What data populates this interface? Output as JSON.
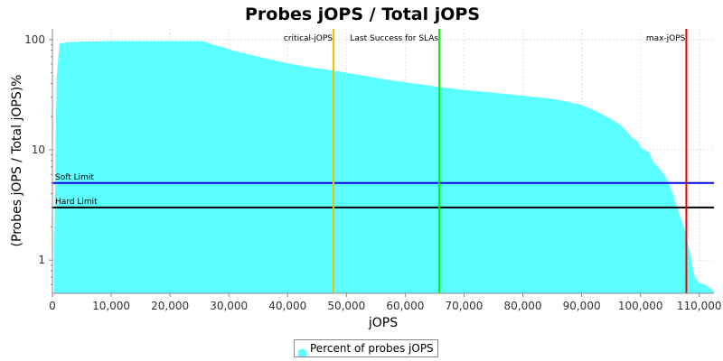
{
  "chart_data": {
    "type": "area",
    "title": "Probes jOPS / Total jOPS",
    "xlabel": "jOPS",
    "ylabel": "(Probes jOPS / Total jOPS)%",
    "y_scale": "log",
    "xlim": [
      0,
      112500
    ],
    "ylim": [
      0.5,
      125
    ],
    "x_tick_labels": [
      "0",
      "10,000",
      "20,000",
      "30,000",
      "40,000",
      "50,000",
      "60,000",
      "70,000",
      "80,000",
      "90,000",
      "100,000",
      "110,000"
    ],
    "x_tick_values": [
      0,
      10000,
      20000,
      30000,
      40000,
      50000,
      60000,
      70000,
      80000,
      90000,
      100000,
      110000
    ],
    "y_tick_labels": [
      "1",
      "10",
      "100"
    ],
    "y_tick_values": [
      1,
      10,
      100
    ],
    "grid": true,
    "legend_position": "bottom-center",
    "series": [
      {
        "name": "Percent of probes jOPS",
        "color": "#5bffff",
        "x": [
          300,
          700,
          1200,
          3000,
          6000,
          10000,
          15000,
          20000,
          24000,
          25500,
          27000,
          29000,
          31000,
          33000,
          35000,
          37000,
          40000,
          43000,
          46000,
          48000,
          50000,
          53000,
          56000,
          60000,
          63000,
          66000,
          70000,
          75000,
          80000,
          85000,
          88000,
          90000,
          92000,
          93500,
          95000,
          96500,
          97500,
          98000,
          98500,
          99500,
          100000,
          101000,
          101500,
          102000,
          103000,
          104000,
          104800,
          105500,
          106200,
          107000,
          107500,
          108000,
          108300,
          108600,
          108800,
          109300,
          110000,
          111000,
          112000,
          112500
        ],
        "values": [
          1.2,
          45,
          92,
          95,
          96,
          97,
          97,
          97,
          97,
          97,
          91,
          85,
          79,
          74,
          70,
          66,
          61,
          57,
          54,
          52,
          50,
          47,
          44,
          41,
          39,
          37,
          35,
          33,
          31,
          29,
          27,
          25.5,
          23,
          21,
          19,
          17,
          15,
          14,
          13,
          12,
          10.5,
          9.8,
          9.5,
          8,
          7,
          6,
          5,
          4,
          3,
          2.3,
          1.9,
          1.5,
          1.25,
          1.05,
          0.9,
          0.7,
          0.62,
          0.6,
          0.55,
          0.52
        ]
      }
    ],
    "vertical_markers": [
      {
        "label": "critical-jOPS",
        "x": 47800,
        "color": "#f0c000"
      },
      {
        "label": "Last Success for SLAs",
        "x": 65800,
        "color": "#00ee00"
      },
      {
        "label": "max-jOPS",
        "x": 107800,
        "color": "#ee0000"
      }
    ],
    "horizontal_markers": [
      {
        "label": "Soft Limit",
        "y": 5,
        "color": "#0000ee"
      },
      {
        "label": "Hard Limit",
        "y": 3,
        "color": "#000000"
      }
    ]
  }
}
